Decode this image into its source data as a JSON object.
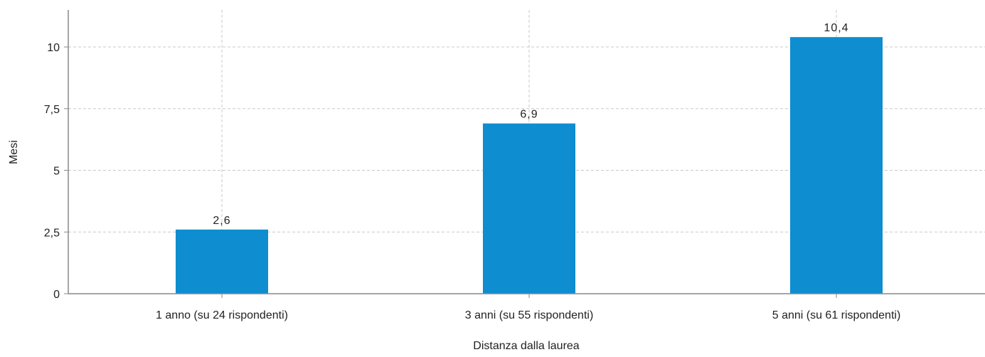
{
  "chart_data": {
    "type": "bar",
    "categories": [
      "1 anno (su 24 rispondenti)",
      "3 anni (su 55 rispondenti)",
      "5 anni (su 61 rispondenti)"
    ],
    "values": [
      2.6,
      6.9,
      10.4
    ],
    "value_labels": [
      "2,6",
      "6,9",
      "10,4"
    ],
    "xlabel": "Distanza dalla laurea",
    "ylabel": "Mesi",
    "ylim": [
      0,
      11.5
    ],
    "yticks": [
      0,
      2.5,
      5,
      7.5,
      10
    ],
    "ytick_labels": [
      "0",
      "2,5",
      "5",
      "7,5",
      "10"
    ],
    "grid": true,
    "bar_color": "#0e8dd0",
    "grid_color": "#c8c8c8",
    "axis_color": "#888888"
  }
}
